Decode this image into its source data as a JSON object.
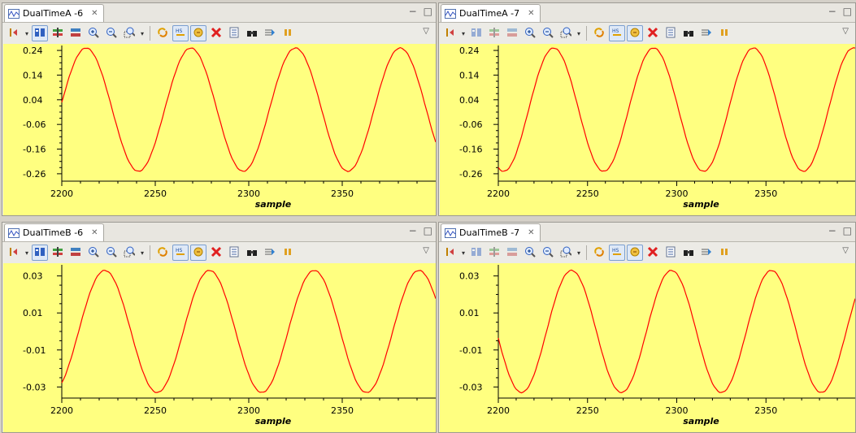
{
  "colors": {
    "signal": "#ff0000",
    "plot_bg": "#ffff80",
    "frame": "#000000"
  },
  "toolbar_icons": [
    "marker-icon",
    "layout-icon",
    "split-icon",
    "columns-icon",
    "zoom-in-icon",
    "zoom-out-icon",
    "zoom-box-icon",
    "refresh-icon",
    "hold-icon",
    "sync-icon",
    "clear-icon",
    "properties-icon",
    "find-icon",
    "export-icon",
    "pause-icon"
  ],
  "panels": [
    {
      "tab_title": "DualTimeA -6",
      "chart_data": {
        "type": "line",
        "xlabel": "sample",
        "xlim": [
          2200,
          2400
        ],
        "xticks": [
          2200,
          2250,
          2300,
          2350
        ],
        "ylim": [
          -0.29,
          0.26
        ],
        "yticks": [
          0.24,
          0.14,
          0.04,
          -0.06,
          -0.16,
          -0.26
        ],
        "ytick_labels": [
          "0.24",
          "0.14",
          "0.04",
          "-0.06",
          "-0.16",
          "-0.26"
        ],
        "series": [
          {
            "amplitude": 0.25,
            "period": 56,
            "peak_at": 2213,
            "x_start": 2200,
            "x_end": 2400
          }
        ]
      }
    },
    {
      "tab_title": "DualTimeA -7",
      "chart_data": {
        "type": "line",
        "xlabel": "sample",
        "xlim": [
          2200,
          2400
        ],
        "xticks": [
          2200,
          2250,
          2300,
          2350
        ],
        "ylim": [
          -0.29,
          0.26
        ],
        "yticks": [
          0.24,
          0.14,
          0.04,
          -0.06,
          -0.16,
          -0.26
        ],
        "ytick_labels": [
          "0.24",
          "0.14",
          "0.04",
          "-0.06",
          "-0.16",
          "-0.26"
        ],
        "series": [
          {
            "amplitude": 0.25,
            "period": 56,
            "peak_at": 2231,
            "x_start": 2200,
            "x_end": 2400
          }
        ]
      }
    },
    {
      "tab_title": "DualTimeB -6",
      "chart_data": {
        "type": "line",
        "xlabel": "sample",
        "xlim": [
          2200,
          2400
        ],
        "xticks": [
          2200,
          2250,
          2300,
          2350
        ],
        "ylim": [
          -0.036,
          0.036
        ],
        "yticks": [
          0.03,
          0.01,
          -0.01,
          -0.03
        ],
        "ytick_labels": [
          "0.03",
          "0.01",
          "-0.01",
          "-0.03"
        ],
        "series": [
          {
            "amplitude": 0.033,
            "period": 56,
            "peak_at": 2223,
            "x_start": 2200,
            "x_end": 2400
          }
        ]
      }
    },
    {
      "tab_title": "DualTimeB -7",
      "chart_data": {
        "type": "line",
        "xlabel": "sample",
        "xlim": [
          2200,
          2400
        ],
        "xticks": [
          2200,
          2250,
          2300,
          2350
        ],
        "ylim": [
          -0.036,
          0.036
        ],
        "yticks": [
          0.03,
          0.01,
          -0.01,
          -0.03
        ],
        "ytick_labels": [
          "0.03",
          "0.01",
          "-0.01",
          "-0.03"
        ],
        "series": [
          {
            "amplitude": 0.033,
            "period": 56,
            "peak_at": 2241,
            "x_start": 2200,
            "x_end": 2400
          }
        ]
      }
    }
  ],
  "window_controls": {
    "minimize": "−",
    "maximize": "□"
  },
  "tab_close_glyph": "✕",
  "menu_glyph": "▽"
}
